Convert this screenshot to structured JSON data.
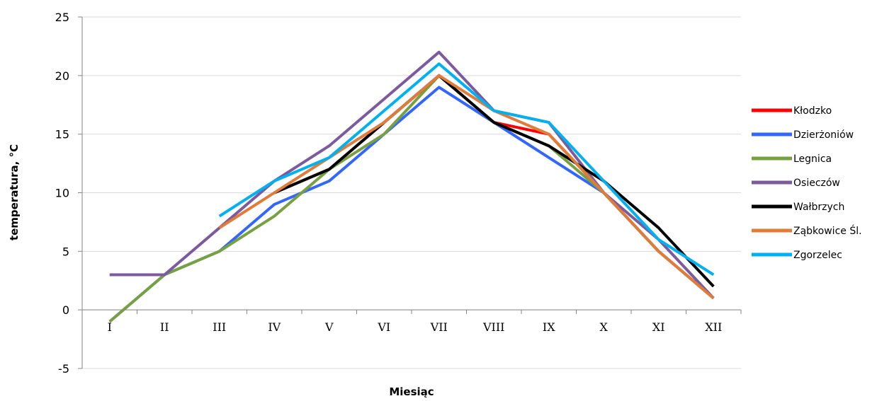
{
  "chart_data": {
    "type": "line",
    "title": "",
    "xlabel": "Miesiąc",
    "ylabel": "temperatura, °C",
    "ylim": [
      -5,
      25
    ],
    "yticks": [
      -5,
      0,
      5,
      10,
      15,
      20,
      25
    ],
    "grid": true,
    "legend_position": "right",
    "categories": [
      "I",
      "II",
      "III",
      "IV",
      "V",
      "VI",
      "VII",
      "VIII",
      "IX",
      "X",
      "XI",
      "XII"
    ],
    "series": [
      {
        "name": "Kłodzko",
        "color": "#ff0000",
        "values": [
          null,
          null,
          null,
          10,
          12,
          16,
          20,
          16,
          15,
          10,
          5,
          1
        ]
      },
      {
        "name": "Dzierżoniów",
        "color": "#3366ff",
        "values": [
          -1,
          3,
          5,
          9,
          11,
          15,
          19,
          16,
          13,
          10,
          5,
          1
        ]
      },
      {
        "name": "Legnica",
        "color": "#77a040",
        "values": [
          -1,
          3,
          5,
          8,
          12,
          15,
          20,
          16,
          14,
          10,
          5,
          1
        ]
      },
      {
        "name": "Osieczów",
        "color": "#7b5a9e",
        "values": [
          3,
          3,
          7,
          11,
          14,
          18,
          22,
          17,
          16,
          10,
          6,
          1
        ]
      },
      {
        "name": "Wałbrzych",
        "color": "#000000",
        "values": [
          null,
          null,
          null,
          10,
          12,
          16,
          20,
          16,
          14,
          11,
          7,
          2
        ]
      },
      {
        "name": "Ząbkowice Śl.",
        "color": "#e07b39",
        "values": [
          null,
          null,
          7,
          10,
          13,
          16,
          20,
          17,
          15,
          10,
          5,
          1
        ]
      },
      {
        "name": "Zgorzelec",
        "color": "#00b0f0",
        "values": [
          null,
          null,
          8,
          11,
          13,
          17,
          21,
          17,
          16,
          11,
          6,
          3
        ]
      }
    ]
  }
}
